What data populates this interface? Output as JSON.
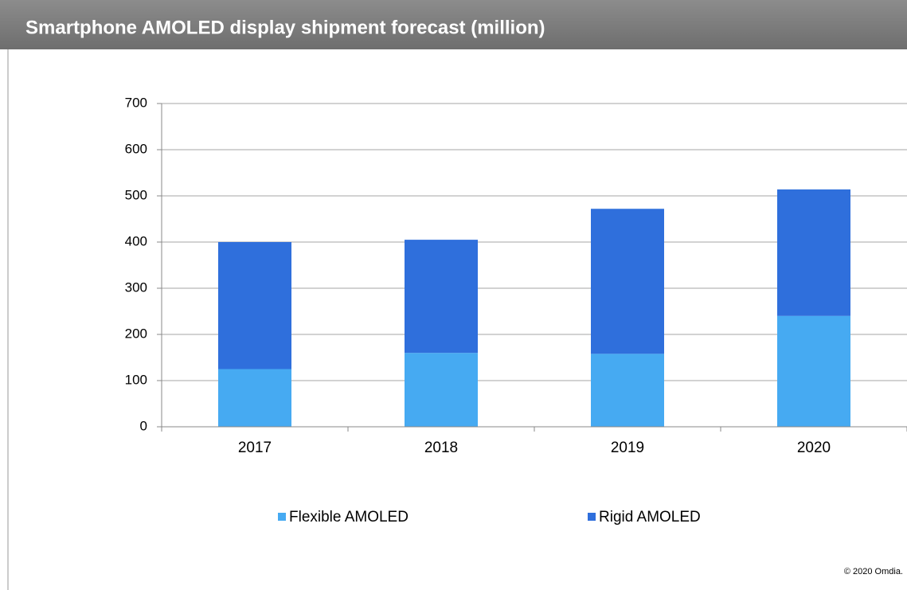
{
  "chart_data": {
    "type": "stacked_bar",
    "title": "Smartphone AMOLED display shipment forecast (million)",
    "categories": [
      "2017",
      "2018",
      "2019",
      "2020"
    ],
    "series": [
      {
        "name": "Flexible AMOLED",
        "color": "#46aaf2",
        "values": [
          125,
          160,
          158,
          240
        ]
      },
      {
        "name": "Rigid AMOLED",
        "color": "#2f6fdc",
        "values": [
          275,
          245,
          314,
          274
        ]
      }
    ],
    "ylim": [
      0,
      700
    ],
    "yticks": [
      0,
      100,
      200,
      300,
      400,
      500,
      600,
      700
    ],
    "grid": true,
    "legend": "bottom",
    "source": "© 2020 Omdia."
  }
}
